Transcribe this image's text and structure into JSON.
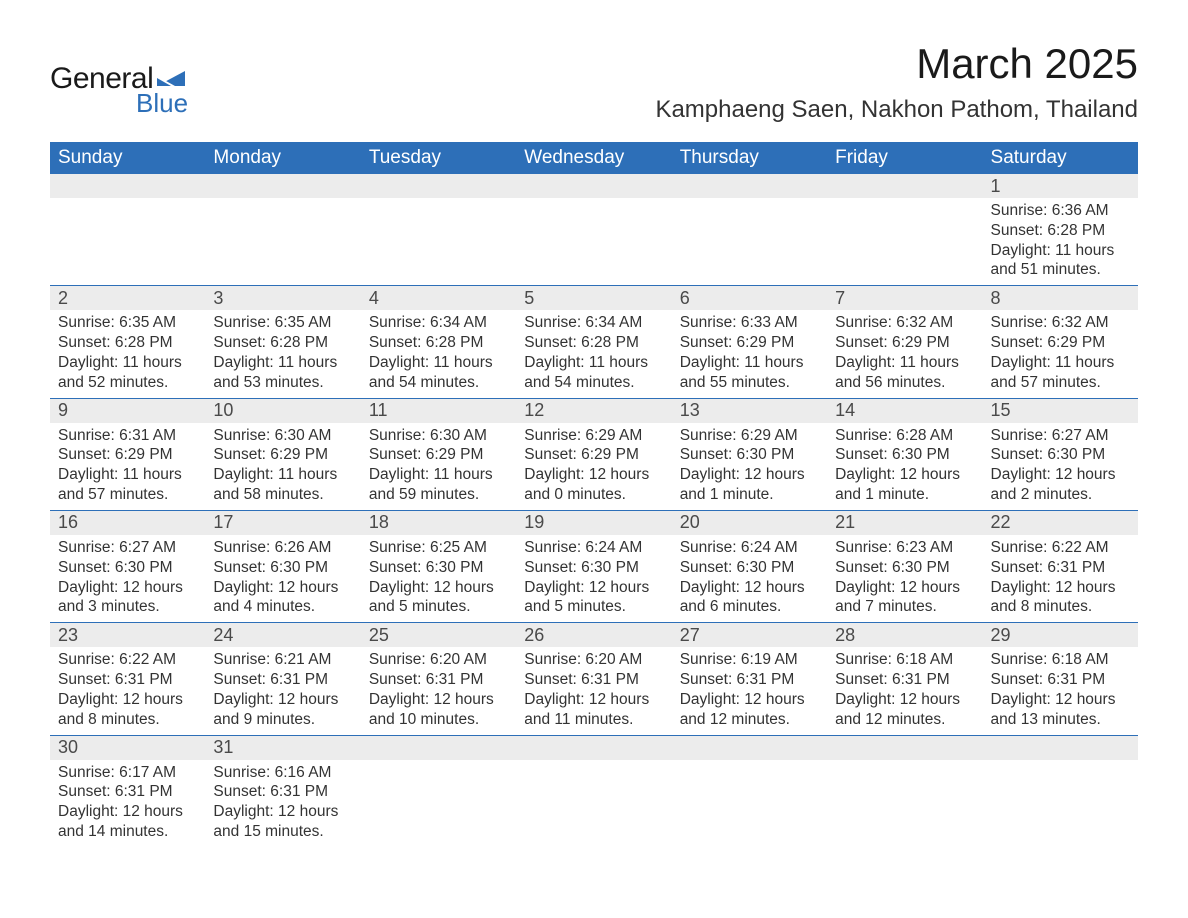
{
  "logo": {
    "text1": "General",
    "text2": "Blue",
    "flag_color": "#2d6fb8"
  },
  "title": {
    "month": "March 2025",
    "location": "Kamphaeng Saen, Nakhon Pathom, Thailand"
  },
  "colors": {
    "header_bg": "#2d6fb8",
    "header_text": "#ffffff",
    "row_divider": "#2d6fb8",
    "daynum_bg": "#ececec",
    "daynum_text": "#4a4a4a",
    "body_text": "#333333",
    "background": "#ffffff"
  },
  "typography": {
    "title_fontsize": 42,
    "location_fontsize": 24,
    "header_fontsize": 19,
    "daynum_fontsize": 18,
    "content_fontsize": 15.5
  },
  "weekdays": [
    "Sunday",
    "Monday",
    "Tuesday",
    "Wednesday",
    "Thursday",
    "Friday",
    "Saturday"
  ],
  "labels": {
    "sunrise": "Sunrise:",
    "sunset": "Sunset:",
    "daylight": "Daylight:"
  },
  "weeks": [
    [
      {
        "empty": true
      },
      {
        "empty": true
      },
      {
        "empty": true
      },
      {
        "empty": true
      },
      {
        "empty": true
      },
      {
        "empty": true
      },
      {
        "day": "1",
        "sunrise": "6:36 AM",
        "sunset": "6:28 PM",
        "daylight": "11 hours and 51 minutes."
      }
    ],
    [
      {
        "day": "2",
        "sunrise": "6:35 AM",
        "sunset": "6:28 PM",
        "daylight": "11 hours and 52 minutes."
      },
      {
        "day": "3",
        "sunrise": "6:35 AM",
        "sunset": "6:28 PM",
        "daylight": "11 hours and 53 minutes."
      },
      {
        "day": "4",
        "sunrise": "6:34 AM",
        "sunset": "6:28 PM",
        "daylight": "11 hours and 54 minutes."
      },
      {
        "day": "5",
        "sunrise": "6:34 AM",
        "sunset": "6:28 PM",
        "daylight": "11 hours and 54 minutes."
      },
      {
        "day": "6",
        "sunrise": "6:33 AM",
        "sunset": "6:29 PM",
        "daylight": "11 hours and 55 minutes."
      },
      {
        "day": "7",
        "sunrise": "6:32 AM",
        "sunset": "6:29 PM",
        "daylight": "11 hours and 56 minutes."
      },
      {
        "day": "8",
        "sunrise": "6:32 AM",
        "sunset": "6:29 PM",
        "daylight": "11 hours and 57 minutes."
      }
    ],
    [
      {
        "day": "9",
        "sunrise": "6:31 AM",
        "sunset": "6:29 PM",
        "daylight": "11 hours and 57 minutes."
      },
      {
        "day": "10",
        "sunrise": "6:30 AM",
        "sunset": "6:29 PM",
        "daylight": "11 hours and 58 minutes."
      },
      {
        "day": "11",
        "sunrise": "6:30 AM",
        "sunset": "6:29 PM",
        "daylight": "11 hours and 59 minutes."
      },
      {
        "day": "12",
        "sunrise": "6:29 AM",
        "sunset": "6:29 PM",
        "daylight": "12 hours and 0 minutes."
      },
      {
        "day": "13",
        "sunrise": "6:29 AM",
        "sunset": "6:30 PM",
        "daylight": "12 hours and 1 minute."
      },
      {
        "day": "14",
        "sunrise": "6:28 AM",
        "sunset": "6:30 PM",
        "daylight": "12 hours and 1 minute."
      },
      {
        "day": "15",
        "sunrise": "6:27 AM",
        "sunset": "6:30 PM",
        "daylight": "12 hours and 2 minutes."
      }
    ],
    [
      {
        "day": "16",
        "sunrise": "6:27 AM",
        "sunset": "6:30 PM",
        "daylight": "12 hours and 3 minutes."
      },
      {
        "day": "17",
        "sunrise": "6:26 AM",
        "sunset": "6:30 PM",
        "daylight": "12 hours and 4 minutes."
      },
      {
        "day": "18",
        "sunrise": "6:25 AM",
        "sunset": "6:30 PM",
        "daylight": "12 hours and 5 minutes."
      },
      {
        "day": "19",
        "sunrise": "6:24 AM",
        "sunset": "6:30 PM",
        "daylight": "12 hours and 5 minutes."
      },
      {
        "day": "20",
        "sunrise": "6:24 AM",
        "sunset": "6:30 PM",
        "daylight": "12 hours and 6 minutes."
      },
      {
        "day": "21",
        "sunrise": "6:23 AM",
        "sunset": "6:30 PM",
        "daylight": "12 hours and 7 minutes."
      },
      {
        "day": "22",
        "sunrise": "6:22 AM",
        "sunset": "6:31 PM",
        "daylight": "12 hours and 8 minutes."
      }
    ],
    [
      {
        "day": "23",
        "sunrise": "6:22 AM",
        "sunset": "6:31 PM",
        "daylight": "12 hours and 8 minutes."
      },
      {
        "day": "24",
        "sunrise": "6:21 AM",
        "sunset": "6:31 PM",
        "daylight": "12 hours and 9 minutes."
      },
      {
        "day": "25",
        "sunrise": "6:20 AM",
        "sunset": "6:31 PM",
        "daylight": "12 hours and 10 minutes."
      },
      {
        "day": "26",
        "sunrise": "6:20 AM",
        "sunset": "6:31 PM",
        "daylight": "12 hours and 11 minutes."
      },
      {
        "day": "27",
        "sunrise": "6:19 AM",
        "sunset": "6:31 PM",
        "daylight": "12 hours and 12 minutes."
      },
      {
        "day": "28",
        "sunrise": "6:18 AM",
        "sunset": "6:31 PM",
        "daylight": "12 hours and 12 minutes."
      },
      {
        "day": "29",
        "sunrise": "6:18 AM",
        "sunset": "6:31 PM",
        "daylight": "12 hours and 13 minutes."
      }
    ],
    [
      {
        "day": "30",
        "sunrise": "6:17 AM",
        "sunset": "6:31 PM",
        "daylight": "12 hours and 14 minutes."
      },
      {
        "day": "31",
        "sunrise": "6:16 AM",
        "sunset": "6:31 PM",
        "daylight": "12 hours and 15 minutes."
      },
      {
        "empty": true
      },
      {
        "empty": true
      },
      {
        "empty": true
      },
      {
        "empty": true
      },
      {
        "empty": true
      }
    ]
  ]
}
